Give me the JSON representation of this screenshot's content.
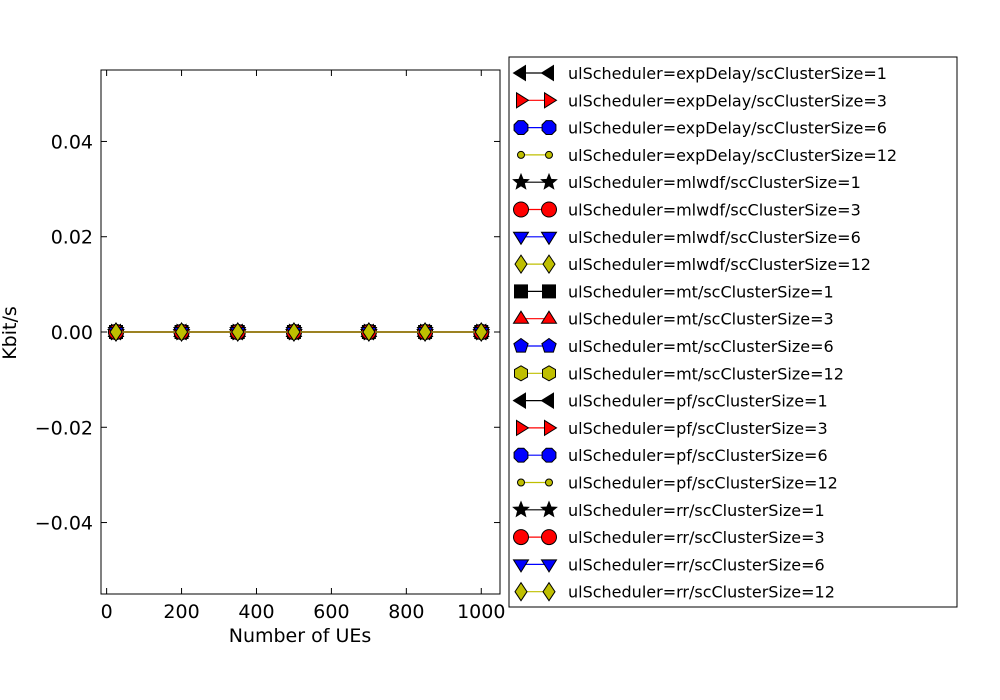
{
  "chart_data": {
    "type": "line",
    "title": "",
    "xlabel": "Number of UEs",
    "ylabel": "Kbit/s",
    "xlim": [
      -15,
      1050
    ],
    "ylim": [
      -0.055,
      0.055
    ],
    "xticks": [
      0,
      200,
      400,
      600,
      800,
      1000
    ],
    "xtick_labels": [
      "0",
      "200",
      "400",
      "600",
      "800",
      "1000"
    ],
    "yticks": [
      0.04,
      0.02,
      0.0,
      -0.02,
      -0.04
    ],
    "ytick_labels": [
      "0.04",
      "0.02",
      "0.00",
      "−0.02",
      "−0.04"
    ],
    "grid": false,
    "legend_position": "right, outside plot",
    "x": [
      25,
      200,
      350,
      500,
      700,
      850,
      1000
    ],
    "series": [
      {
        "name": "ulScheduler=expDelay/scClusterSize=1",
        "color": "#000000",
        "marker": "triangle-left",
        "values": [
          0,
          0,
          0,
          0,
          0,
          0,
          0
        ]
      },
      {
        "name": "ulScheduler=expDelay/scClusterSize=3",
        "color": "#ff0000",
        "marker": "triangle-right",
        "values": [
          0,
          0,
          0,
          0,
          0,
          0,
          0
        ]
      },
      {
        "name": "ulScheduler=expDelay/scClusterSize=6",
        "color": "#0000ff",
        "marker": "octagon",
        "values": [
          0,
          0,
          0,
          0,
          0,
          0,
          0
        ]
      },
      {
        "name": "ulScheduler=expDelay/scClusterSize=12",
        "color": "#bfbf00",
        "marker": "point",
        "values": [
          0,
          0,
          0,
          0,
          0,
          0,
          0
        ]
      },
      {
        "name": "ulScheduler=mlwdf/scClusterSize=1",
        "color": "#000000",
        "marker": "star",
        "values": [
          0,
          0,
          0,
          0,
          0,
          0,
          0
        ]
      },
      {
        "name": "ulScheduler=mlwdf/scClusterSize=3",
        "color": "#ff0000",
        "marker": "circle",
        "values": [
          0,
          0,
          0,
          0,
          0,
          0,
          0
        ]
      },
      {
        "name": "ulScheduler=mlwdf/scClusterSize=6",
        "color": "#0000ff",
        "marker": "triangle-down",
        "values": [
          0,
          0,
          0,
          0,
          0,
          0,
          0
        ]
      },
      {
        "name": "ulScheduler=mlwdf/scClusterSize=12",
        "color": "#bfbf00",
        "marker": "diamond",
        "values": [
          0,
          0,
          0,
          0,
          0,
          0,
          0
        ]
      },
      {
        "name": "ulScheduler=mt/scClusterSize=1",
        "color": "#000000",
        "marker": "square",
        "values": [
          0,
          0,
          0,
          0,
          0,
          0,
          0
        ]
      },
      {
        "name": "ulScheduler=mt/scClusterSize=3",
        "color": "#ff0000",
        "marker": "triangle-up",
        "values": [
          0,
          0,
          0,
          0,
          0,
          0,
          0
        ]
      },
      {
        "name": "ulScheduler=mt/scClusterSize=6",
        "color": "#0000ff",
        "marker": "pentagon",
        "values": [
          0,
          0,
          0,
          0,
          0,
          0,
          0
        ]
      },
      {
        "name": "ulScheduler=mt/scClusterSize=12",
        "color": "#bfbf00",
        "marker": "hexagon",
        "values": [
          0,
          0,
          0,
          0,
          0,
          0,
          0
        ]
      },
      {
        "name": "ulScheduler=pf/scClusterSize=1",
        "color": "#000000",
        "marker": "triangle-left",
        "values": [
          0,
          0,
          0,
          0,
          0,
          0,
          0
        ]
      },
      {
        "name": "ulScheduler=pf/scClusterSize=3",
        "color": "#ff0000",
        "marker": "triangle-right",
        "values": [
          0,
          0,
          0,
          0,
          0,
          0,
          0
        ]
      },
      {
        "name": "ulScheduler=pf/scClusterSize=6",
        "color": "#0000ff",
        "marker": "octagon",
        "values": [
          0,
          0,
          0,
          0,
          0,
          0,
          0
        ]
      },
      {
        "name": "ulScheduler=pf/scClusterSize=12",
        "color": "#bfbf00",
        "marker": "point",
        "values": [
          0,
          0,
          0,
          0,
          0,
          0,
          0
        ]
      },
      {
        "name": "ulScheduler=rr/scClusterSize=1",
        "color": "#000000",
        "marker": "star",
        "values": [
          0,
          0,
          0,
          0,
          0,
          0,
          0
        ]
      },
      {
        "name": "ulScheduler=rr/scClusterSize=3",
        "color": "#ff0000",
        "marker": "circle",
        "values": [
          0,
          0,
          0,
          0,
          0,
          0,
          0
        ]
      },
      {
        "name": "ulScheduler=rr/scClusterSize=6",
        "color": "#0000ff",
        "marker": "triangle-down",
        "values": [
          0,
          0,
          0,
          0,
          0,
          0,
          0
        ]
      },
      {
        "name": "ulScheduler=rr/scClusterSize=12",
        "color": "#bfbf00",
        "marker": "diamond",
        "values": [
          0,
          0,
          0,
          0,
          0,
          0,
          0
        ]
      }
    ]
  }
}
